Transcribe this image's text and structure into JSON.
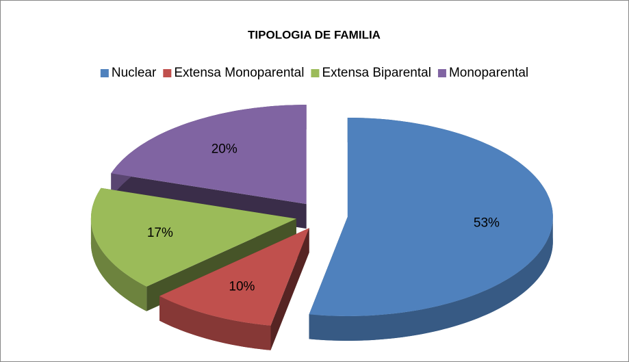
{
  "chart_data": {
    "type": "pie3d",
    "title": "TIPOLOGIA DE FAMILIA",
    "categories": [
      "Nuclear",
      "Extensa Monoparental",
      "Extensa Biparental",
      "Monoparental"
    ],
    "values": [
      53,
      10,
      17,
      20
    ],
    "value_labels": [
      "53%",
      "10%",
      "17%",
      "20%"
    ],
    "colors": [
      "#4f81bd",
      "#c0504d",
      "#9bbb59",
      "#8064a2"
    ],
    "legend": "top"
  }
}
